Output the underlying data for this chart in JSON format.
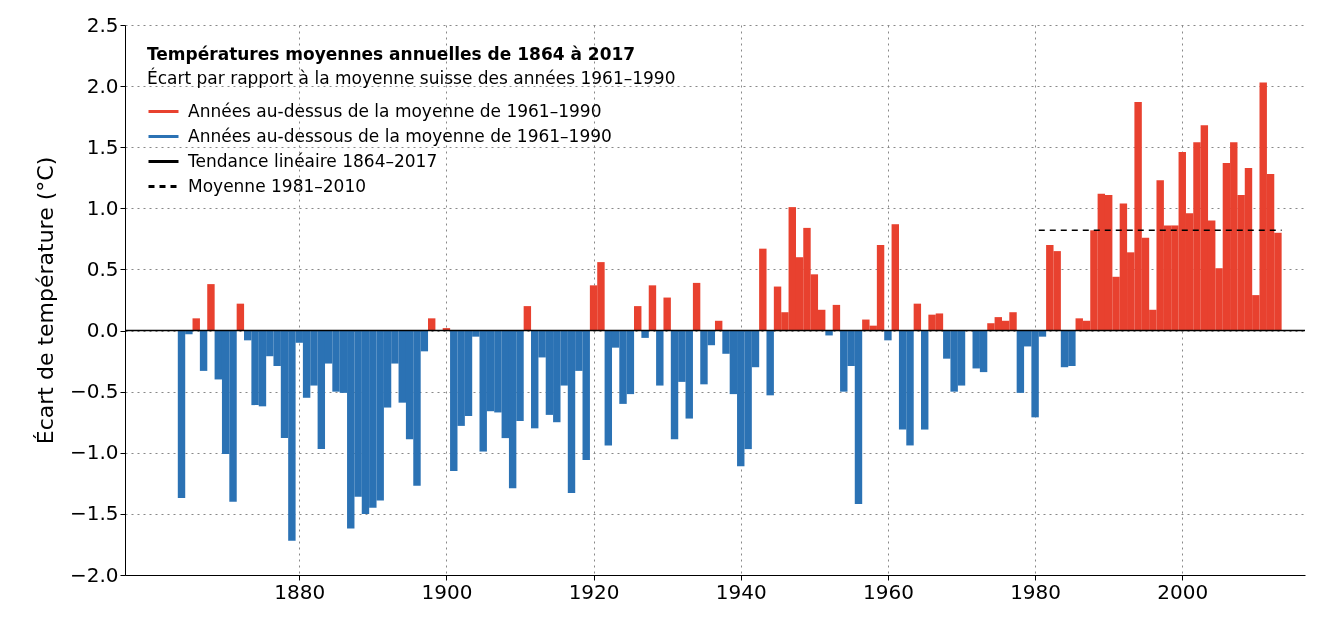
{
  "chart_data": {
    "type": "bar",
    "title": "Températures moyennes annuelles de 1864 à 2017",
    "subtitle": "Écart par rapport à la moyenne suisse des années 1961–1990",
    "ylabel": "Écart de température (°C)",
    "x": [
      1864,
      1865,
      1866,
      1867,
      1868,
      1869,
      1870,
      1871,
      1872,
      1873,
      1874,
      1875,
      1876,
      1877,
      1878,
      1879,
      1880,
      1881,
      1882,
      1883,
      1884,
      1885,
      1886,
      1887,
      1888,
      1889,
      1890,
      1891,
      1892,
      1893,
      1894,
      1895,
      1896,
      1897,
      1898,
      1899,
      1900,
      1901,
      1902,
      1903,
      1904,
      1905,
      1906,
      1907,
      1908,
      1909,
      1910,
      1911,
      1912,
      1913,
      1914,
      1915,
      1916,
      1917,
      1918,
      1919,
      1920,
      1921,
      1922,
      1923,
      1924,
      1925,
      1926,
      1927,
      1928,
      1929,
      1930,
      1931,
      1932,
      1933,
      1934,
      1935,
      1936,
      1937,
      1938,
      1939,
      1940,
      1941,
      1942,
      1943,
      1944,
      1945,
      1946,
      1947,
      1948,
      1949,
      1950,
      1951,
      1952,
      1953,
      1954,
      1955,
      1956,
      1957,
      1958,
      1959,
      1960,
      1961,
      1962,
      1963,
      1964,
      1965,
      1966,
      1967,
      1968,
      1969,
      1970,
      1971,
      1972,
      1973,
      1974,
      1975,
      1976,
      1977,
      1978,
      1979,
      1980,
      1981,
      1982,
      1983,
      1984,
      1985,
      1986,
      1987,
      1988,
      1989,
      1990,
      1991,
      1992,
      1993,
      1994,
      1995,
      1996,
      1997,
      1998,
      1999,
      2000,
      2001,
      2002,
      2003,
      2004,
      2005,
      2006,
      2007,
      2008,
      2009,
      2010,
      2011,
      2012,
      2013
    ],
    "series": [
      {
        "name": "Années au-dessus de la moyenne de 1961–1990",
        "color": "#e8412f",
        "values": [
          null,
          null,
          0.1,
          null,
          0.38,
          null,
          null,
          null,
          0.22,
          null,
          null,
          null,
          null,
          null,
          null,
          null,
          null,
          null,
          null,
          null,
          null,
          null,
          null,
          null,
          null,
          null,
          null,
          null,
          null,
          null,
          null,
          null,
          null,
          null,
          0.1,
          null,
          0.02,
          null,
          null,
          null,
          null,
          null,
          null,
          null,
          null,
          null,
          null,
          0.2,
          null,
          null,
          null,
          null,
          null,
          null,
          null,
          null,
          0.37,
          0.56,
          null,
          null,
          null,
          null,
          0.2,
          null,
          0.37,
          null,
          0.27,
          null,
          null,
          null,
          0.39,
          null,
          null,
          0.08,
          null,
          null,
          null,
          null,
          null,
          0.67,
          null,
          0.36,
          0.15,
          1.01,
          0.6,
          0.84,
          0.46,
          0.17,
          null,
          0.21,
          null,
          null,
          null,
          0.09,
          0.04,
          0.7,
          null,
          0.87,
          null,
          null,
          0.22,
          null,
          0.13,
          0.14,
          null,
          null,
          null,
          null,
          null,
          null,
          0.06,
          0.11,
          0.08,
          0.15,
          null,
          null,
          null,
          null,
          0.7,
          0.65,
          null,
          null,
          0.1,
          0.08,
          0.82,
          1.12,
          1.11,
          0.44,
          1.04,
          0.64,
          1.87,
          0.76,
          0.17,
          1.23,
          0.86,
          0.86,
          1.46,
          0.96,
          1.54,
          1.68,
          0.9,
          0.51,
          1.37,
          1.54,
          1.11,
          1.33,
          0.29,
          2.03,
          1.28,
          0.8
        ]
      },
      {
        "name": "Années au-dessous de la moyenne de 1961–1990",
        "color": "#2b72b4",
        "values": [
          -1.37,
          -0.03,
          null,
          -0.33,
          null,
          -0.4,
          -1.01,
          -1.4,
          null,
          -0.08,
          -0.61,
          -0.62,
          -0.21,
          -0.29,
          -0.88,
          -1.72,
          -0.1,
          -0.55,
          -0.45,
          -0.97,
          -0.27,
          -0.5,
          -0.51,
          -1.62,
          -1.36,
          -1.5,
          -1.45,
          -1.39,
          -0.63,
          -0.27,
          -0.59,
          -0.89,
          -1.27,
          -0.17,
          null,
          null,
          null,
          -1.15,
          -0.78,
          -0.7,
          -0.05,
          -0.99,
          -0.66,
          -0.67,
          -0.88,
          -1.29,
          -0.74,
          null,
          -0.8,
          -0.22,
          -0.69,
          -0.75,
          -0.45,
          -1.33,
          -0.33,
          -1.06,
          null,
          null,
          -0.94,
          -0.14,
          -0.6,
          -0.52,
          null,
          -0.06,
          null,
          -0.45,
          null,
          -0.89,
          -0.42,
          -0.72,
          null,
          -0.44,
          -0.12,
          null,
          -0.19,
          -0.52,
          -1.11,
          -0.97,
          -0.3,
          null,
          -0.53,
          null,
          null,
          null,
          null,
          null,
          null,
          null,
          -0.04,
          null,
          -0.5,
          -0.29,
          -1.42,
          null,
          null,
          null,
          -0.08,
          null,
          -0.81,
          -0.94,
          null,
          -0.81,
          null,
          null,
          -0.23,
          -0.5,
          -0.45,
          null,
          -0.31,
          -0.34,
          null,
          null,
          null,
          null,
          -0.51,
          -0.13,
          -0.71,
          -0.05,
          null,
          null,
          -0.3,
          -0.29,
          null,
          null,
          null,
          null,
          null,
          null,
          null,
          null,
          null,
          null,
          null,
          null,
          null,
          null,
          null,
          null,
          null,
          null,
          null,
          null,
          null,
          null,
          null,
          null,
          null,
          null,
          null,
          null
        ]
      },
      {
        "name": "Tendance linéaire 1864–2017",
        "type": "line",
        "color": "#000000",
        "line_style": "solid",
        "values": [
          null,
          null,
          null,
          null,
          null,
          null,
          null,
          null,
          null,
          null,
          null,
          null,
          null,
          null,
          null,
          null,
          null,
          null,
          null,
          null,
          null,
          null,
          null,
          null,
          null,
          null,
          null,
          null,
          null,
          null,
          null,
          null,
          null,
          null,
          null,
          null,
          null,
          null,
          null,
          null,
          null,
          null,
          null,
          null,
          null,
          null,
          null,
          null,
          null,
          null,
          null,
          null,
          null,
          null,
          null,
          null,
          null,
          null,
          null,
          null,
          null,
          null,
          null,
          null,
          null,
          null,
          null,
          null,
          null,
          null,
          null,
          null,
          null,
          null,
          null,
          null,
          null,
          null,
          null,
          null,
          null,
          null,
          null,
          null,
          null,
          null,
          null,
          null,
          null,
          null,
          null,
          null,
          null,
          null,
          null,
          null,
          null,
          null,
          null,
          null,
          null,
          null,
          null,
          null,
          null,
          null,
          null,
          null,
          null,
          null,
          null,
          null,
          null,
          null,
          null,
          null,
          null,
          null,
          null,
          null,
          null,
          null,
          null,
          null,
          null,
          null,
          null,
          null,
          null,
          null,
          null,
          null,
          null,
          null,
          null,
          null,
          null,
          null,
          null,
          null,
          null,
          null,
          null,
          null,
          null,
          null,
          null,
          null,
          null,
          null
        ]
      },
      {
        "name": "Moyenne 1981–2010",
        "type": "line",
        "color": "#000000",
        "line_style": "dashed",
        "x": [
          1980.5,
          2013.5
        ],
        "values": [
          0.82,
          0.82
        ]
      }
    ],
    "xlim": [
      1857,
      2016
    ],
    "xticks": [
      1880,
      1900,
      1920,
      1940,
      1960,
      1980,
      2000
    ],
    "ylim": [
      -2.0,
      2.5
    ],
    "yticks": [
      {
        "value": -2,
        "label": "−2.0"
      },
      {
        "value": -1.5,
        "label": "−1.5"
      },
      {
        "value": -1,
        "label": "−1.0"
      },
      {
        "value": -0.5,
        "label": "−0.5"
      },
      {
        "value": 0,
        "label": "0.0"
      },
      0.5,
      {
        "value": 1,
        "label": "1.0"
      },
      1.5,
      {
        "value": 2,
        "label": "2.0"
      },
      2.5
    ],
    "ref_lines": [
      {
        "axis": "y",
        "value": 0,
        "color": "#000000"
      }
    ],
    "grid": true,
    "legend": "top left"
  }
}
